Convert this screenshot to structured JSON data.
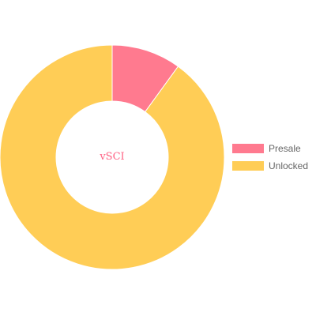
{
  "chart_data": {
    "type": "pie",
    "variant": "doughnut",
    "center_text": "vSCI",
    "series": [
      {
        "name": "Presale",
        "value": 10,
        "color": "#ff7a8f"
      },
      {
        "name": "Unlocked",
        "value": 90,
        "color": "#ffcd56"
      }
    ],
    "legend_position": "right",
    "start_angle_deg": -90,
    "direction": "clockwise"
  },
  "colors": {
    "center_text": "#ff6384",
    "legend_text": "#666666",
    "background": "#ffffff"
  }
}
